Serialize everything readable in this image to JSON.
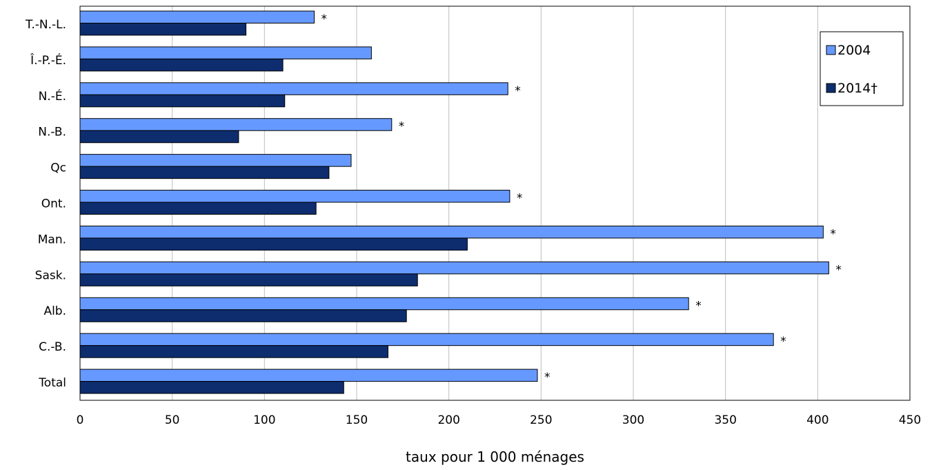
{
  "chart_data": {
    "type": "bar",
    "orientation": "horizontal",
    "categories": [
      "T.-N.-L.",
      "Î.-P.-É.",
      "N.-É.",
      "N.-B.",
      "Qc",
      "Ont.",
      "Man.",
      "Sask.",
      "Alb.",
      "C.-B.",
      "Total"
    ],
    "series": [
      {
        "name": "2004",
        "color": "#6699ff",
        "values": [
          127,
          158,
          232,
          169,
          147,
          233,
          403,
          406,
          330,
          376,
          248
        ],
        "markers": [
          "*",
          "",
          "*",
          "*",
          "",
          "*",
          "*",
          "*",
          "*",
          "*",
          "*"
        ]
      },
      {
        "name": "2014†",
        "color": "#0d2d6e",
        "values": [
          90,
          110,
          111,
          86,
          135,
          128,
          210,
          183,
          177,
          167,
          143
        ]
      }
    ],
    "xlabel": "taux pour 1 000 ménages",
    "ylabel": "",
    "xlim": [
      0,
      450
    ],
    "xticks": [
      0,
      50,
      100,
      150,
      200,
      250,
      300,
      350,
      400,
      450
    ],
    "grid": "vertical",
    "legend": "top-right"
  }
}
